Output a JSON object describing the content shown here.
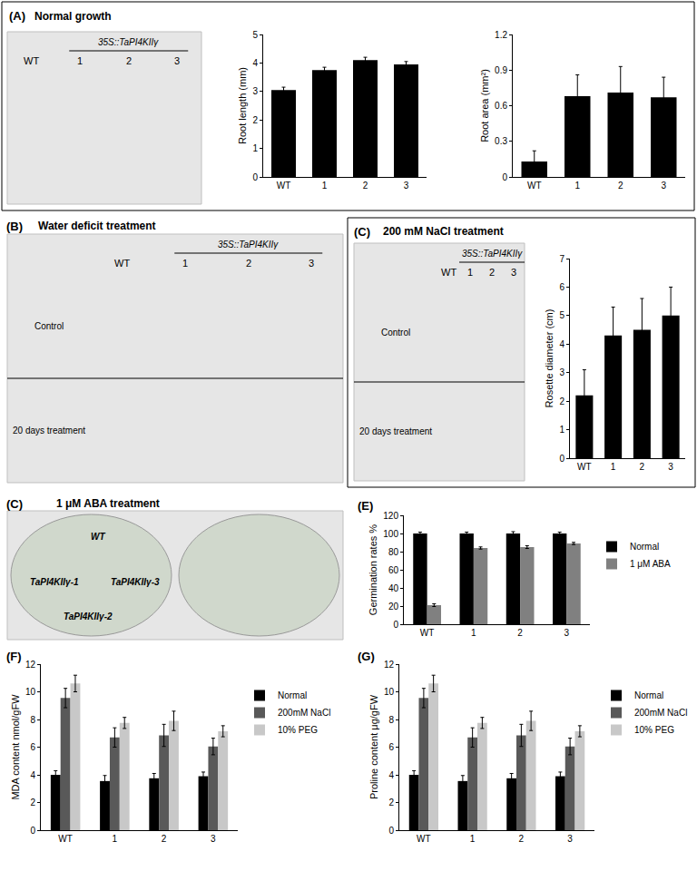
{
  "panels": [
    {
      "label": "(A)",
      "title": "Normal growth",
      "photo": {
        "group_label": "35S::TaPI4KIIγ",
        "columns": [
          "WT",
          "1",
          "2",
          "3"
        ]
      }
    },
    {
      "label": "(B)",
      "title": "Water deficit treatment",
      "photo": {
        "group_label": "35S::TaPI4KIIγ",
        "columns": [
          "WT",
          "1",
          "2",
          "3"
        ],
        "rows": [
          "Control",
          "20 days treatment"
        ]
      }
    },
    {
      "label": "(C)",
      "title": "200 mM NaCl treatment",
      "photo": {
        "group_label": "35S::TaPI4KIIγ",
        "columns": [
          "WT",
          "1",
          "2",
          "3"
        ],
        "rows": [
          "Control",
          "20 days treatment"
        ]
      }
    },
    {
      "label": "(C)",
      "title": "1 μM ABA treatment",
      "photo": {
        "labels": [
          "WT",
          "TaPI4KIIγ-1",
          "TaPI4KIIγ-2",
          "TaPI4KIIγ-3"
        ]
      }
    },
    {
      "label": "(E)"
    },
    {
      "label": "(F)"
    },
    {
      "label": "(G)"
    }
  ],
  "chart_data": [
    {
      "type": "bar",
      "y_label": "Root length (mm)",
      "categories": [
        "WT",
        "1",
        "2",
        "3"
      ],
      "values": [
        3.05,
        3.75,
        4.1,
        3.95
      ],
      "errors": [
        0.1,
        0.1,
        0.1,
        0.1
      ],
      "color": "#000000",
      "ylim": [
        0,
        5
      ],
      "yticks": [
        0,
        1,
        2,
        3,
        4,
        5
      ],
      "grid": false
    },
    {
      "type": "bar",
      "y_label": "Root area (mm²)",
      "categories": [
        "WT",
        "1",
        "2",
        "3"
      ],
      "values": [
        0.13,
        0.68,
        0.71,
        0.67
      ],
      "errors": [
        0.09,
        0.18,
        0.22,
        0.17
      ],
      "color": "#000000",
      "ylim": [
        0,
        1.2
      ],
      "yticks": [
        0,
        0.3,
        0.6,
        0.9,
        1.2
      ],
      "grid": false
    },
    {
      "type": "bar",
      "y_label": "Rosette diameter (cm)",
      "categories": [
        "WT",
        "1",
        "2",
        "3"
      ],
      "values": [
        2.2,
        4.3,
        4.5,
        5.0
      ],
      "errors": [
        0.9,
        1.0,
        1.1,
        1.0
      ],
      "color": "#000000",
      "ylim": [
        0,
        7
      ],
      "yticks": [
        0,
        1,
        2,
        3,
        4,
        5,
        6,
        7
      ],
      "grid": false
    },
    {
      "type": "bar",
      "y_label": "Germination rates %",
      "categories": [
        "WT",
        "1",
        "2",
        "3"
      ],
      "series": [
        {
          "name": "Normal",
          "color": "#000000",
          "values": [
            100,
            100,
            100,
            100
          ],
          "errors": [
            1.5,
            1.5,
            2,
            1.5
          ]
        },
        {
          "name": "1 μM ABA",
          "color": "#808080",
          "values": [
            21,
            84,
            85,
            89
          ],
          "errors": [
            1.5,
            1.2,
            1.5,
            1.2
          ]
        }
      ],
      "ylim": [
        0,
        120
      ],
      "yticks": [
        0,
        20,
        40,
        60,
        80,
        100,
        120
      ],
      "grid": false,
      "legend": "right"
    },
    {
      "type": "bar",
      "y_label": "MDA content nmol/gFW",
      "categories": [
        "WT",
        "1",
        "2",
        "3"
      ],
      "series": [
        {
          "name": "Normal",
          "color": "#000000",
          "values": [
            4.0,
            3.55,
            3.75,
            3.9
          ],
          "errors": [
            0.3,
            0.4,
            0.35,
            0.3
          ]
        },
        {
          "name": "200mM NaCl",
          "color": "#595959",
          "values": [
            9.55,
            6.7,
            6.85,
            6.05
          ],
          "errors": [
            0.7,
            0.7,
            0.8,
            0.6
          ]
        },
        {
          "name": "10% PEG",
          "color": "#c8c8c8",
          "values": [
            10.6,
            7.75,
            7.9,
            7.15
          ],
          "errors": [
            0.6,
            0.4,
            0.7,
            0.4
          ]
        }
      ],
      "ylim": [
        0,
        12
      ],
      "yticks": [
        0,
        2,
        4,
        6,
        8,
        10,
        12
      ],
      "grid": false,
      "legend": "right"
    },
    {
      "type": "bar",
      "y_label": "Proline content μg/gFW",
      "categories": [
        "WT",
        "1",
        "2",
        "3"
      ],
      "series": [
        {
          "name": "Normal",
          "color": "#000000",
          "values": [
            4.0,
            3.55,
            3.75,
            3.9
          ],
          "errors": [
            0.3,
            0.4,
            0.35,
            0.3
          ]
        },
        {
          "name": "200mM NaCl",
          "color": "#595959",
          "values": [
            9.55,
            6.7,
            6.85,
            6.05
          ],
          "errors": [
            0.7,
            0.7,
            0.8,
            0.6
          ]
        },
        {
          "name": "10% PEG",
          "color": "#c8c8c8",
          "values": [
            10.6,
            7.75,
            7.9,
            7.15
          ],
          "errors": [
            0.6,
            0.4,
            0.7,
            0.4
          ]
        }
      ],
      "ylim": [
        0,
        12
      ],
      "yticks": [
        0,
        2,
        4,
        6,
        8,
        10,
        12
      ],
      "grid": false,
      "legend": "right"
    }
  ]
}
